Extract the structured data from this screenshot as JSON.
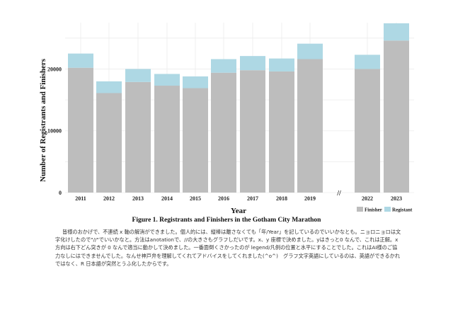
{
  "chart_data": {
    "type": "bar",
    "stacked": true,
    "categories": [
      "2011",
      "2012",
      "2013",
      "2014",
      "2015",
      "2016",
      "2017",
      "2018",
      "2019",
      "2022",
      "2023"
    ],
    "axis_break_label": "//",
    "series": [
      {
        "name": "Finisher",
        "color": "#bdbdbd",
        "values": [
          20200,
          16100,
          17900,
          17300,
          16900,
          19400,
          19800,
          19600,
          21600,
          20000,
          24600
        ]
      },
      {
        "name": "Registant",
        "color": "#aed8e4",
        "values": [
          2300,
          1900,
          2100,
          1900,
          1900,
          2200,
          2300,
          2100,
          2500,
          2300,
          2800
        ]
      }
    ],
    "xlabel": "Year",
    "ylabel": "Number of Registrants and Finishers",
    "ylim": [
      0,
      27500
    ],
    "yticks": [
      "0",
      "10000",
      "20000"
    ],
    "ytick_values": [
      0,
      10000,
      20000
    ],
    "grid": true,
    "legend_position": "bottom-right"
  },
  "caption": "Figure 1.  Registrants and Finishers in the Gotham City Marathon",
  "body_text": "皆様のおかげで、不連続 x 軸の解消ができました。個人的には、縦棒は離さなくても「年/Year」を記しているのでいいかなとも。ニョロニョロは文字化けしたので\"//\"でいいかなと。方法はanotationで、//の大きさもグラフしだいです。x、y 座標で決めました。yはきっと0 なんで、これは正解。x 方向は右下どん突きが 0 なんで適当に動かして決めました。一番面倒くさかったのが legend/凡例の位置と水平にすることでした。これはAI様のご協力なしにはできませんでした。なんせ神戸弁を理解してくれてアドバイスをしてくれました(^o^)　グラフ文字英語にしているのは、英語ができるかれではなく、R 日本語が突然とうふ化したからです。"
}
